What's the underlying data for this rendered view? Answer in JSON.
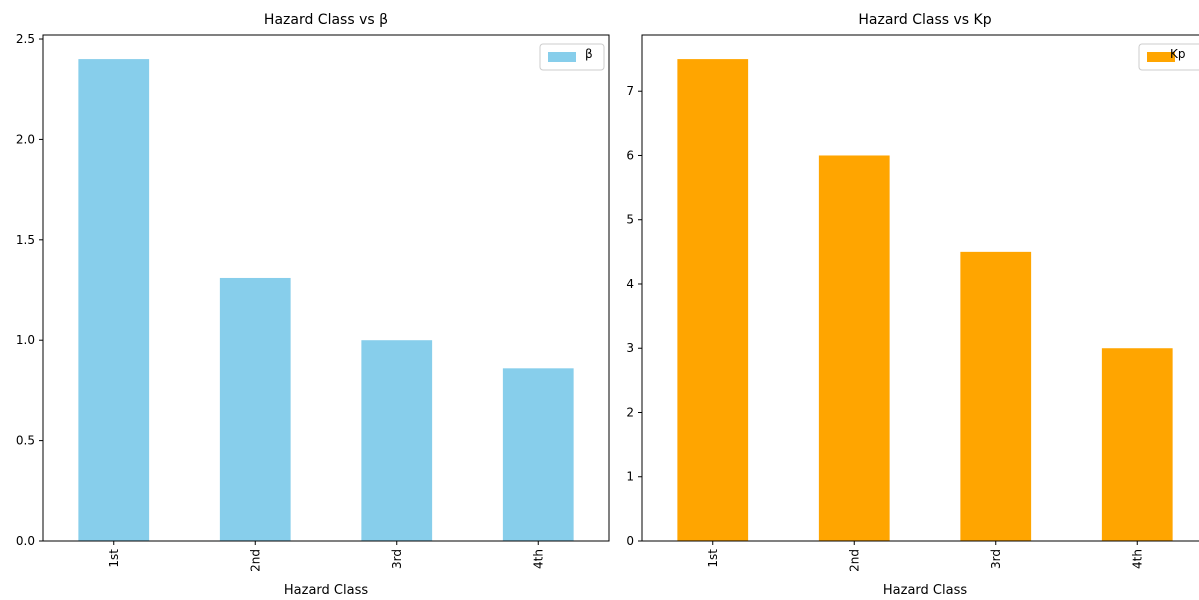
{
  "chart_data": [
    {
      "type": "bar",
      "title": "Hazard Class vs β",
      "xlabel": "Hazard Class",
      "ylabel": "",
      "categories": [
        "1st",
        "2nd",
        "3rd",
        "4th"
      ],
      "series": [
        {
          "name": "β",
          "values": [
            2.4,
            1.31,
            1.0,
            0.86
          ]
        }
      ],
      "ylim": [
        0,
        2.52
      ],
      "yticks": [
        0.0,
        0.5,
        1.0,
        1.5,
        2.0,
        2.5
      ],
      "ytick_labels": [
        "0.0",
        "0.5",
        "1.0",
        "1.5",
        "2.0",
        "2.5"
      ],
      "color": "#87CEEB",
      "legend": "top-right",
      "grid": false
    },
    {
      "type": "bar",
      "title": "Hazard Class vs Kp",
      "xlabel": "Hazard Class",
      "ylabel": "",
      "categories": [
        "1st",
        "2nd",
        "3rd",
        "4th"
      ],
      "series": [
        {
          "name": "Kp",
          "values": [
            7.5,
            6.0,
            4.5,
            3.0
          ]
        }
      ],
      "ylim": [
        0,
        7.875
      ],
      "yticks": [
        0,
        1,
        2,
        3,
        4,
        5,
        6,
        7
      ],
      "ytick_labels": [
        "0",
        "1",
        "2",
        "3",
        "4",
        "5",
        "6",
        "7"
      ],
      "color": "#FFA500",
      "legend": "top-right",
      "grid": false
    }
  ]
}
